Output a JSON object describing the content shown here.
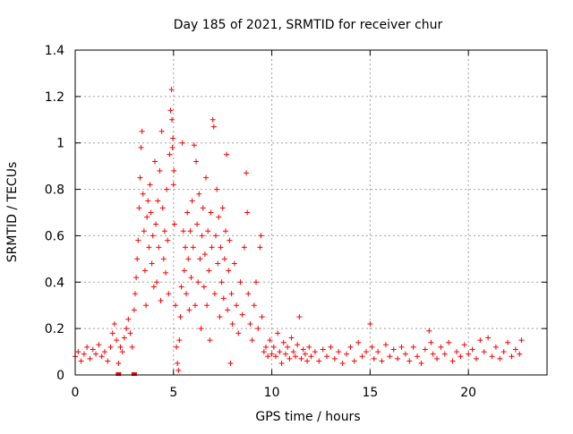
{
  "chart_data": {
    "type": "scatter",
    "title": "Day 185 of 2021, SRMTID for receiver chur",
    "xlabel": "GPS time / hours",
    "ylabel": "SRMTID / TECUs",
    "xlim": [
      0,
      24
    ],
    "ylim": [
      0,
      1.4
    ],
    "x_ticks": [
      0,
      5,
      10,
      15,
      20
    ],
    "y_ticks": [
      0,
      0.2,
      0.4,
      0.6,
      0.8,
      1,
      1.2,
      1.4
    ],
    "x_tick_labels": [
      "0",
      "5",
      "10",
      "15",
      "20"
    ],
    "y_tick_labels": [
      "0",
      "0.2",
      "0.4",
      "0.6",
      "0.8",
      "1",
      "1.2",
      "1.4"
    ],
    "grid": true,
    "marker": "plus",
    "series_color": "#ff0000",
    "series": [
      {
        "name": "SRMTID",
        "points": [
          [
            0.0,
            0.08
          ],
          [
            0.15,
            0.1
          ],
          [
            0.3,
            0.06
          ],
          [
            0.45,
            0.09
          ],
          [
            0.6,
            0.12
          ],
          [
            0.75,
            0.07
          ],
          [
            0.9,
            0.11
          ],
          [
            1.05,
            0.09
          ],
          [
            1.2,
            0.13
          ],
          [
            1.35,
            0.08
          ],
          [
            1.5,
            0.1
          ],
          [
            1.65,
            0.06
          ],
          [
            1.8,
            0.12
          ],
          [
            1.9,
            0.18
          ],
          [
            2.0,
            0.22
          ],
          [
            2.1,
            0.15
          ],
          [
            2.2,
            0.05
          ],
          [
            2.3,
            0.12
          ],
          [
            2.4,
            0.1
          ],
          [
            2.5,
            0.16
          ],
          [
            2.6,
            0.2
          ],
          [
            2.7,
            0.24
          ],
          [
            2.8,
            0.18
          ],
          [
            2.9,
            0.12
          ],
          [
            3.0,
            0.28
          ],
          [
            3.05,
            0.35
          ],
          [
            3.1,
            0.42
          ],
          [
            3.15,
            0.5
          ],
          [
            3.2,
            0.58
          ],
          [
            3.25,
            0.72
          ],
          [
            3.3,
            0.85
          ],
          [
            3.35,
            0.98
          ],
          [
            3.4,
            1.05
          ],
          [
            3.45,
            0.78
          ],
          [
            3.5,
            0.62
          ],
          [
            3.55,
            0.45
          ],
          [
            3.6,
            0.3
          ],
          [
            3.65,
            0.68
          ],
          [
            3.7,
            0.75
          ],
          [
            3.75,
            0.55
          ],
          [
            3.8,
            0.82
          ],
          [
            3.85,
            0.7
          ],
          [
            3.9,
            0.48
          ],
          [
            3.95,
            0.6
          ],
          [
            4.0,
            0.38
          ],
          [
            4.05,
            0.92
          ],
          [
            4.1,
            0.65
          ],
          [
            4.15,
            0.4
          ],
          [
            4.2,
            0.75
          ],
          [
            4.25,
            0.55
          ],
          [
            4.3,
            0.88
          ],
          [
            4.35,
            0.32
          ],
          [
            4.4,
            1.05
          ],
          [
            4.45,
            0.72
          ],
          [
            4.5,
            0.5
          ],
          [
            4.55,
            0.62
          ],
          [
            4.6,
            0.44
          ],
          [
            4.65,
            0.8
          ],
          [
            4.7,
            0.58
          ],
          [
            4.75,
            0.35
          ],
          [
            4.8,
            0.95
          ],
          [
            4.85,
            1.14
          ],
          [
            4.9,
            1.23
          ],
          [
            4.92,
            1.1
          ],
          [
            4.95,
            0.98
          ],
          [
            4.97,
            1.02
          ],
          [
            5.0,
            0.82
          ],
          [
            5.02,
            0.88
          ],
          [
            5.05,
            0.65
          ],
          [
            5.1,
            0.3
          ],
          [
            5.15,
            0.12
          ],
          [
            5.2,
            0.05
          ],
          [
            5.25,
            0.02
          ],
          [
            5.3,
            0.15
          ],
          [
            5.35,
            0.25
          ],
          [
            5.4,
            0.38
          ],
          [
            5.45,
            1.0
          ],
          [
            5.5,
            0.62
          ],
          [
            5.55,
            0.45
          ],
          [
            5.6,
            0.55
          ],
          [
            5.65,
            0.35
          ],
          [
            5.7,
            0.7
          ],
          [
            5.75,
            0.5
          ],
          [
            5.8,
            0.28
          ],
          [
            5.85,
            0.62
          ],
          [
            5.9,
            0.42
          ],
          [
            5.95,
            0.75
          ],
          [
            6.0,
            0.55
          ],
          [
            6.05,
            0.99
          ],
          [
            6.1,
            0.3
          ],
          [
            6.15,
            0.92
          ],
          [
            6.2,
            0.65
          ],
          [
            6.25,
            0.4
          ],
          [
            6.3,
            0.78
          ],
          [
            6.35,
            0.5
          ],
          [
            6.4,
            0.2
          ],
          [
            6.45,
            0.6
          ],
          [
            6.5,
            0.72
          ],
          [
            6.55,
            0.38
          ],
          [
            6.6,
            0.52
          ],
          [
            6.65,
            0.85
          ],
          [
            6.7,
            0.3
          ],
          [
            6.75,
            0.62
          ],
          [
            6.8,
            0.45
          ],
          [
            6.85,
            0.15
          ],
          [
            6.9,
            0.7
          ],
          [
            6.95,
            0.55
          ],
          [
            7.0,
            1.1
          ],
          [
            7.05,
            1.07
          ],
          [
            7.1,
            0.35
          ],
          [
            7.15,
            0.6
          ],
          [
            7.2,
            0.8
          ],
          [
            7.25,
            0.48
          ],
          [
            7.3,
            0.68
          ],
          [
            7.35,
            0.25
          ],
          [
            7.4,
            0.55
          ],
          [
            7.45,
            0.4
          ],
          [
            7.5,
            0.72
          ],
          [
            7.55,
            0.33
          ],
          [
            7.6,
            0.5
          ],
          [
            7.65,
            0.62
          ],
          [
            7.7,
            0.95
          ],
          [
            7.75,
            0.28
          ],
          [
            7.8,
            0.45
          ],
          [
            7.85,
            0.58
          ],
          [
            7.9,
            0.05
          ],
          [
            7.95,
            0.35
          ],
          [
            8.0,
            0.22
          ],
          [
            8.1,
            0.48
          ],
          [
            8.2,
            0.3
          ],
          [
            8.3,
            0.18
          ],
          [
            8.4,
            0.4
          ],
          [
            8.5,
            0.26
          ],
          [
            8.6,
            0.55
          ],
          [
            8.7,
            0.87
          ],
          [
            8.75,
            0.7
          ],
          [
            8.8,
            0.35
          ],
          [
            8.9,
            0.22
          ],
          [
            9.0,
            0.15
          ],
          [
            9.1,
            0.3
          ],
          [
            9.2,
            0.4
          ],
          [
            9.3,
            0.2
          ],
          [
            9.4,
            0.55
          ],
          [
            9.45,
            0.6
          ],
          [
            9.5,
            0.25
          ],
          [
            9.6,
            0.1
          ],
          [
            9.7,
            0.12
          ],
          [
            9.8,
            0.08
          ],
          [
            9.9,
            0.15
          ],
          [
            10.0,
            0.09
          ],
          [
            10.1,
            0.12
          ],
          [
            10.2,
            0.08
          ],
          [
            10.3,
            0.18
          ],
          [
            10.4,
            0.1
          ],
          [
            10.5,
            0.05
          ],
          [
            10.6,
            0.14
          ],
          [
            10.7,
            0.09
          ],
          [
            10.8,
            0.12
          ],
          [
            10.9,
            0.07
          ],
          [
            11.0,
            0.16
          ],
          [
            11.1,
            0.1
          ],
          [
            11.2,
            0.08
          ],
          [
            11.3,
            0.13
          ],
          [
            11.4,
            0.25
          ],
          [
            11.5,
            0.07
          ],
          [
            11.6,
            0.11
          ],
          [
            11.7,
            0.09
          ],
          [
            11.8,
            0.06
          ],
          [
            11.9,
            0.12
          ],
          [
            12.0,
            0.08
          ],
          [
            12.2,
            0.1
          ],
          [
            12.4,
            0.06
          ],
          [
            12.6,
            0.11
          ],
          [
            12.8,
            0.08
          ],
          [
            13.0,
            0.12
          ],
          [
            13.2,
            0.07
          ],
          [
            13.4,
            0.1
          ],
          [
            13.6,
            0.05
          ],
          [
            13.8,
            0.09
          ],
          [
            14.0,
            0.12
          ],
          [
            14.2,
            0.06
          ],
          [
            14.4,
            0.14
          ],
          [
            14.6,
            0.08
          ],
          [
            14.8,
            0.1
          ],
          [
            15.0,
            0.22
          ],
          [
            15.1,
            0.12
          ],
          [
            15.2,
            0.07
          ],
          [
            15.4,
            0.1
          ],
          [
            15.6,
            0.06
          ],
          [
            15.8,
            0.13
          ],
          [
            16.0,
            0.08
          ],
          [
            16.2,
            0.11
          ],
          [
            16.4,
            0.07
          ],
          [
            16.6,
            0.12
          ],
          [
            16.8,
            0.09
          ],
          [
            17.0,
            0.06
          ],
          [
            17.2,
            0.12
          ],
          [
            17.4,
            0.08
          ],
          [
            17.6,
            0.05
          ],
          [
            17.8,
            0.11
          ],
          [
            18.0,
            0.19
          ],
          [
            18.1,
            0.14
          ],
          [
            18.2,
            0.09
          ],
          [
            18.4,
            0.07
          ],
          [
            18.6,
            0.12
          ],
          [
            18.8,
            0.09
          ],
          [
            19.0,
            0.14
          ],
          [
            19.2,
            0.06
          ],
          [
            19.4,
            0.1
          ],
          [
            19.6,
            0.08
          ],
          [
            19.8,
            0.13
          ],
          [
            20.0,
            0.09
          ],
          [
            20.2,
            0.11
          ],
          [
            20.4,
            0.07
          ],
          [
            20.6,
            0.15
          ],
          [
            20.8,
            0.1
          ],
          [
            21.0,
            0.16
          ],
          [
            21.2,
            0.08
          ],
          [
            21.4,
            0.12
          ],
          [
            21.6,
            0.07
          ],
          [
            21.8,
            0.1
          ],
          [
            22.0,
            0.14
          ],
          [
            22.2,
            0.08
          ],
          [
            22.4,
            0.11
          ],
          [
            22.6,
            0.09
          ],
          [
            22.7,
            0.15
          ]
        ]
      }
    ],
    "bottom_markers": [
      2.2,
      3.0
    ],
    "colors": {
      "points": "#ff0000",
      "grid": "#a0a0a0",
      "axis": "#000000"
    }
  }
}
